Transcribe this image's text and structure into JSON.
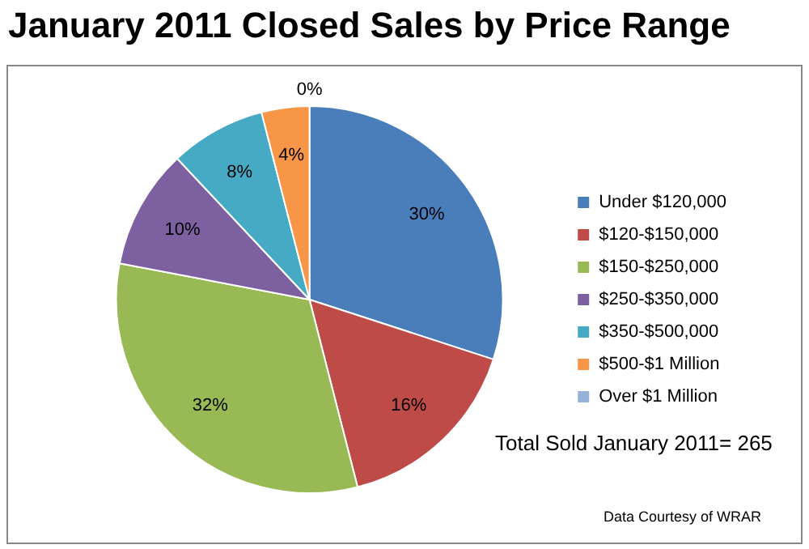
{
  "chart_data": {
    "type": "pie",
    "title": "January 2011 Closed Sales by Price Range",
    "categories": [
      "Under $120,000",
      "$120-$150,000",
      "$150-$250,000",
      "$250-$350,000",
      "$350-$500,000",
      "$500-$1 Million",
      "Over $1 Million"
    ],
    "values": [
      30,
      16,
      32,
      10,
      8,
      4,
      0
    ],
    "value_labels": [
      "30%",
      "16%",
      "32%",
      "10%",
      "8%",
      "4%",
      "0%"
    ],
    "colors": [
      "#4a7ebb",
      "#be4b48",
      "#98b954",
      "#7d60a0",
      "#46aac5",
      "#f79646",
      "#95b3d7"
    ],
    "legend": "right",
    "annotations": [
      "Total Sold January 2011= 265",
      "Data Courtesy of WRAR"
    ]
  }
}
